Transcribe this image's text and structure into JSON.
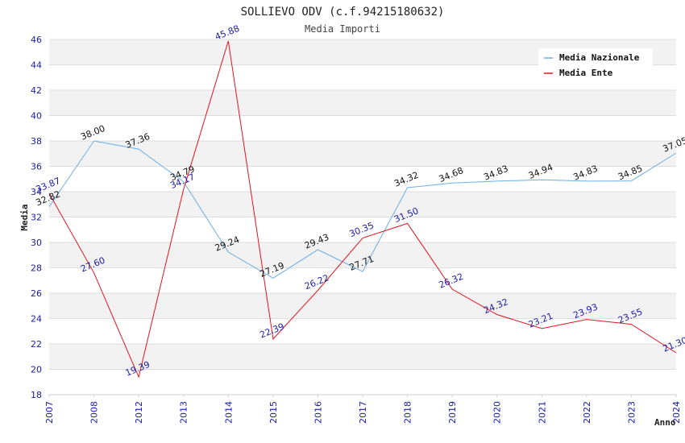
{
  "chart_data": {
    "type": "line",
    "title": "SOLLIEVO ODV (c.f.94215180632)",
    "subtitle": "Media Importi",
    "xlabel": "Anno",
    "ylabel": "Media",
    "categories": [
      "2007",
      "2008",
      "2012",
      "2013",
      "2014",
      "2015",
      "2016",
      "2017",
      "2018",
      "2019",
      "2020",
      "2021",
      "2022",
      "2023",
      "2024"
    ],
    "ylim": [
      18,
      46
    ],
    "yticks": [
      "18",
      "20",
      "22",
      "24",
      "26",
      "28",
      "30",
      "32",
      "34",
      "36",
      "38",
      "40",
      "42",
      "44",
      "46"
    ],
    "grid": true,
    "legend_position": "top-right",
    "series": [
      {
        "name": "Media Nazionale",
        "color": "#6aaee6",
        "label_color": "#111111",
        "values": [
          32.82,
          38.0,
          37.36,
          34.79,
          29.24,
          27.19,
          29.43,
          27.71,
          34.32,
          34.68,
          34.83,
          34.94,
          34.83,
          34.85,
          37.05
        ],
        "labels": [
          "32.82",
          "38.00",
          "37.36",
          "34.79",
          "29.24",
          "27.19",
          "29.43",
          "27.71",
          "34.32",
          "34.68",
          "34.83",
          "34.94",
          "34.83",
          "34.85",
          "37.05"
        ]
      },
      {
        "name": "Media Ente",
        "color": "#e0141e",
        "label_color": "#1a1aa6",
        "values": [
          33.87,
          27.6,
          19.39,
          34.17,
          45.88,
          22.39,
          26.22,
          30.35,
          31.5,
          26.32,
          24.32,
          23.21,
          23.93,
          23.55,
          21.3
        ],
        "labels": [
          "33.87",
          "27.60",
          "19.39",
          "34.17",
          "45.88",
          "22.39",
          "26.22",
          "30.35",
          "31.50",
          "26.32",
          "24.32",
          "23.21",
          "23.93",
          "23.55",
          "21.30"
        ]
      }
    ]
  }
}
